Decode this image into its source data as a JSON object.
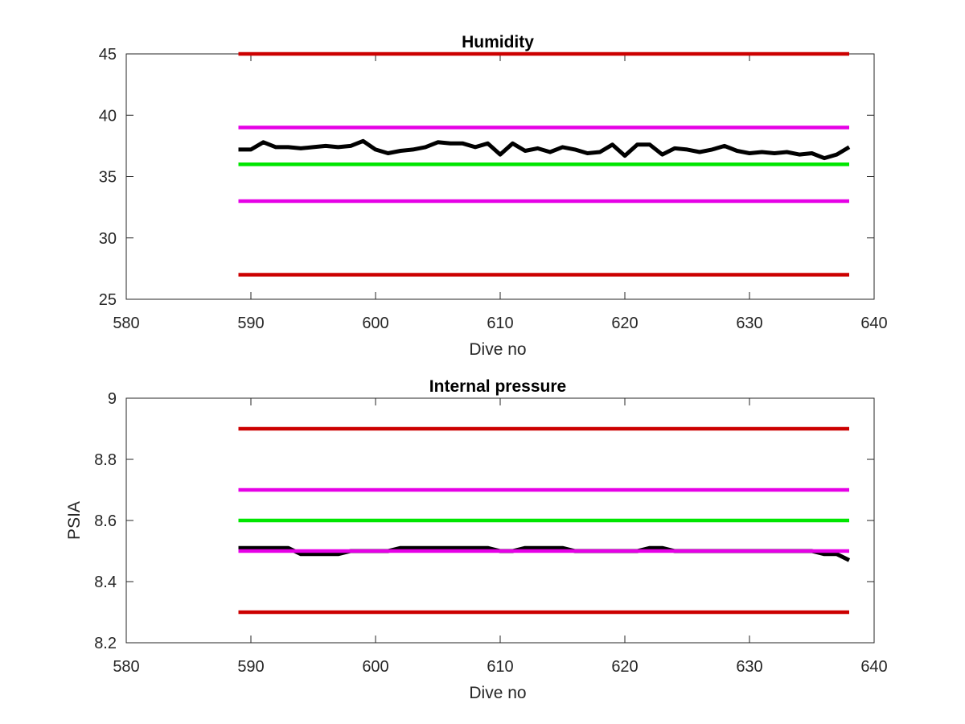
{
  "chart_data": [
    {
      "type": "line",
      "title": "Humidity",
      "xlabel": "Dive no",
      "ylabel": "",
      "xlim": [
        580,
        640
      ],
      "ylim": [
        25,
        45
      ],
      "xticks": [
        580,
        590,
        600,
        610,
        620,
        630,
        640
      ],
      "yticks": [
        25,
        30,
        35,
        40,
        45
      ],
      "grid": false,
      "legend": "none",
      "series": [
        {
          "color": "#cc0000",
          "role": "limit",
          "x": [
            589,
            638
          ],
          "values": [
            45,
            45
          ]
        },
        {
          "color": "#e600e6",
          "role": "limit",
          "x": [
            589,
            638
          ],
          "values": [
            39,
            39
          ]
        },
        {
          "color": "#00e600",
          "role": "nominal",
          "x": [
            589,
            638
          ],
          "values": [
            36,
            36
          ]
        },
        {
          "color": "#e600e6",
          "role": "limit",
          "x": [
            589,
            638
          ],
          "values": [
            33,
            33
          ]
        },
        {
          "color": "#cc0000",
          "role": "limit",
          "x": [
            589,
            638
          ],
          "values": [
            27,
            27
          ]
        },
        {
          "color": "#000000",
          "role": "measurement",
          "x": [
            589,
            590,
            591,
            592,
            593,
            594,
            595,
            596,
            597,
            598,
            599,
            600,
            601,
            602,
            603,
            604,
            605,
            606,
            607,
            608,
            609,
            610,
            611,
            612,
            613,
            614,
            615,
            616,
            617,
            618,
            619,
            620,
            621,
            622,
            623,
            624,
            625,
            626,
            627,
            628,
            629,
            630,
            631,
            632,
            633,
            634,
            635,
            636,
            637,
            638
          ],
          "values": [
            37.2,
            37.2,
            37.8,
            37.4,
            37.4,
            37.3,
            37.4,
            37.5,
            37.4,
            37.5,
            37.9,
            37.2,
            36.9,
            37.1,
            37.2,
            37.4,
            37.8,
            37.7,
            37.7,
            37.4,
            37.7,
            36.8,
            37.7,
            37.1,
            37.3,
            37.0,
            37.4,
            37.2,
            36.9,
            37.0,
            37.6,
            36.7,
            37.6,
            37.6,
            36.8,
            37.3,
            37.2,
            37.0,
            37.2,
            37.5,
            37.1,
            36.9,
            37.0,
            36.9,
            37.0,
            36.8,
            36.9,
            36.5,
            36.8,
            37.4
          ]
        }
      ]
    },
    {
      "type": "line",
      "title": "Internal pressure",
      "xlabel": "Dive no",
      "ylabel": "PSIA",
      "xlim": [
        580,
        640
      ],
      "ylim": [
        8.2,
        9.0
      ],
      "xticks": [
        580,
        590,
        600,
        610,
        620,
        630,
        640
      ],
      "yticks": [
        8.2,
        8.4,
        8.6,
        8.8,
        9.0
      ],
      "ytick_labels": [
        "8.2",
        "8.4",
        "8.6",
        "8.8",
        "9"
      ],
      "grid": false,
      "legend": "none",
      "series": [
        {
          "color": "#cc0000",
          "role": "limit",
          "x": [
            589,
            638
          ],
          "values": [
            8.9,
            8.9
          ]
        },
        {
          "color": "#e600e6",
          "role": "limit",
          "x": [
            589,
            638
          ],
          "values": [
            8.7,
            8.7
          ]
        },
        {
          "color": "#00e600",
          "role": "nominal",
          "x": [
            589,
            638
          ],
          "values": [
            8.6,
            8.6
          ]
        },
        {
          "color": "#cc0000",
          "role": "limit",
          "x": [
            589,
            638
          ],
          "values": [
            8.3,
            8.3
          ]
        },
        {
          "color": "#000000",
          "role": "measurement",
          "x": [
            589,
            590,
            591,
            592,
            593,
            594,
            595,
            596,
            597,
            598,
            599,
            600,
            601,
            602,
            603,
            604,
            605,
            606,
            607,
            608,
            609,
            610,
            611,
            612,
            613,
            614,
            615,
            616,
            617,
            618,
            619,
            620,
            621,
            622,
            623,
            624,
            625,
            626,
            627,
            628,
            629,
            630,
            631,
            632,
            633,
            634,
            635,
            636,
            637,
            638
          ],
          "values": [
            8.51,
            8.51,
            8.51,
            8.51,
            8.51,
            8.49,
            8.49,
            8.49,
            8.49,
            8.5,
            8.5,
            8.5,
            8.5,
            8.51,
            8.51,
            8.51,
            8.51,
            8.51,
            8.51,
            8.51,
            8.51,
            8.5,
            8.5,
            8.51,
            8.51,
            8.51,
            8.51,
            8.5,
            8.5,
            8.5,
            8.5,
            8.5,
            8.5,
            8.51,
            8.51,
            8.5,
            8.5,
            8.5,
            8.5,
            8.5,
            8.5,
            8.5,
            8.5,
            8.5,
            8.5,
            8.5,
            8.5,
            8.49,
            8.49,
            8.47
          ]
        },
        {
          "color": "#e600e6",
          "role": "limit",
          "x": [
            589,
            638
          ],
          "values": [
            8.5,
            8.5
          ]
        }
      ]
    }
  ]
}
